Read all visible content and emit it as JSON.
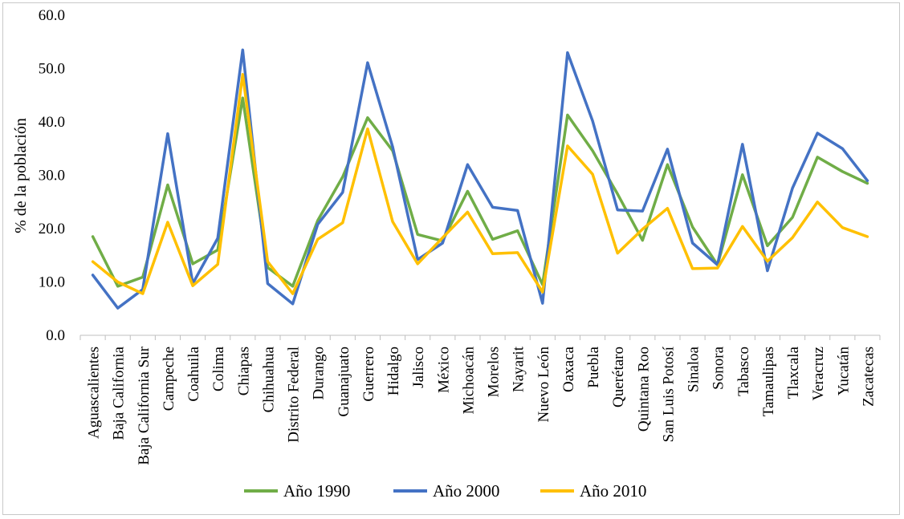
{
  "chart_data": {
    "type": "line",
    "ylabel": "% de la población",
    "xlabel": "",
    "ylim": [
      0,
      60
    ],
    "yticks": [
      "0.0",
      "10.0",
      "20.0",
      "30.0",
      "40.0",
      "50.0",
      "60.0"
    ],
    "grid": false,
    "legend_position": "bottom",
    "categories": [
      "Aguascalientes",
      "Baja  California",
      "Baja  California  Sur",
      "Campeche",
      "Coahuila",
      "Colima",
      "Chiapas",
      "Chihuahua",
      "Distrito  Federal",
      "Durango",
      "Guanajuato",
      "Guerrero",
      "Hidalgo",
      "Jalisco",
      "México",
      "Michoacán",
      "Morelos",
      "Nayarit",
      "Nuevo  León",
      "Oaxaca",
      "Puebla",
      "Querétaro",
      "Quintana  Roo",
      "San Luis  Potosí",
      "Sinaloa",
      "Sonora",
      "Tabasco",
      "Tamaulipas",
      "Tlaxcala",
      "Veracruz",
      "Yucatán",
      "Zacatecas"
    ],
    "series": [
      {
        "name": "Año 1990",
        "color": "#70ad47",
        "values": [
          18.5,
          9.2,
          10.9,
          28.2,
          13.4,
          16.0,
          44.5,
          12.7,
          9.2,
          21.5,
          29.7,
          40.8,
          34.6,
          18.9,
          17.7,
          27.0,
          18.0,
          19.6,
          9.5,
          41.3,
          34.6,
          26.5,
          17.8,
          32.0,
          20.3,
          13.2,
          30.1,
          16.8,
          22.1,
          33.4,
          30.7,
          28.5
        ]
      },
      {
        "name": "Año 2000",
        "color": "#4472c4",
        "values": [
          11.3,
          5.1,
          8.6,
          37.8,
          9.7,
          18.2,
          53.5,
          9.7,
          5.9,
          20.8,
          26.8,
          51.1,
          35.3,
          14.2,
          17.3,
          32.0,
          24.0,
          23.4,
          6.0,
          53.0,
          40.2,
          23.5,
          23.3,
          34.9,
          17.3,
          13.2,
          35.8,
          12.1,
          27.6,
          37.9,
          35.0,
          29.0
        ]
      },
      {
        "name": "Año 2010",
        "color": "#ffc000",
        "values": [
          13.8,
          10.0,
          7.8,
          21.2,
          9.3,
          13.3,
          48.9,
          13.8,
          7.8,
          18.0,
          21.1,
          38.7,
          21.3,
          13.4,
          18.3,
          23.1,
          15.3,
          15.5,
          8.1,
          35.5,
          30.2,
          15.4,
          19.9,
          23.8,
          12.5,
          12.6,
          20.4,
          13.9,
          18.3,
          25.0,
          20.2,
          18.5
        ]
      }
    ]
  }
}
